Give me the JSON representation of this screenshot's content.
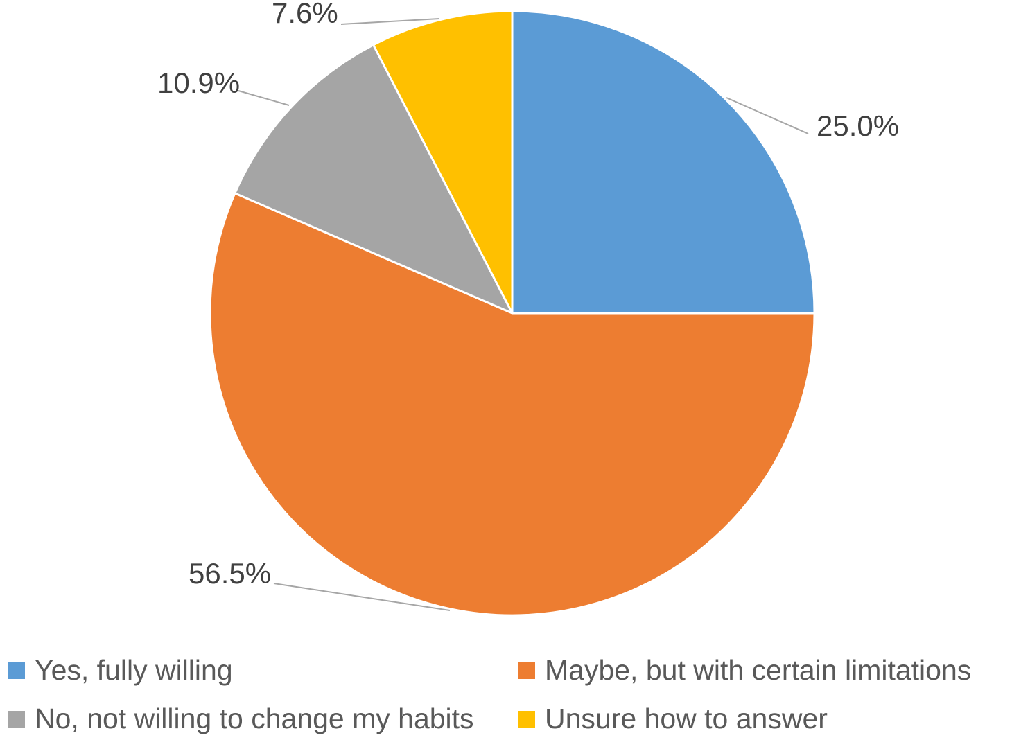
{
  "chart_data": {
    "type": "pie",
    "title": "",
    "categories": [
      "Yes, fully willing",
      "Maybe, but with certain limitations",
      "No, not willing to change my habits",
      "Unsure how to answer"
    ],
    "values": [
      25.0,
      56.5,
      10.9,
      7.6
    ],
    "data_labels": [
      "25.0%",
      "56.5%",
      "10.9%",
      "7.6%"
    ],
    "colors": [
      "#5B9BD5",
      "#ED7D31",
      "#A5A5A5",
      "#FFC000"
    ],
    "start_angle": "12 o'clock",
    "direction": "clockwise",
    "legend": "bottom",
    "grid": false
  }
}
